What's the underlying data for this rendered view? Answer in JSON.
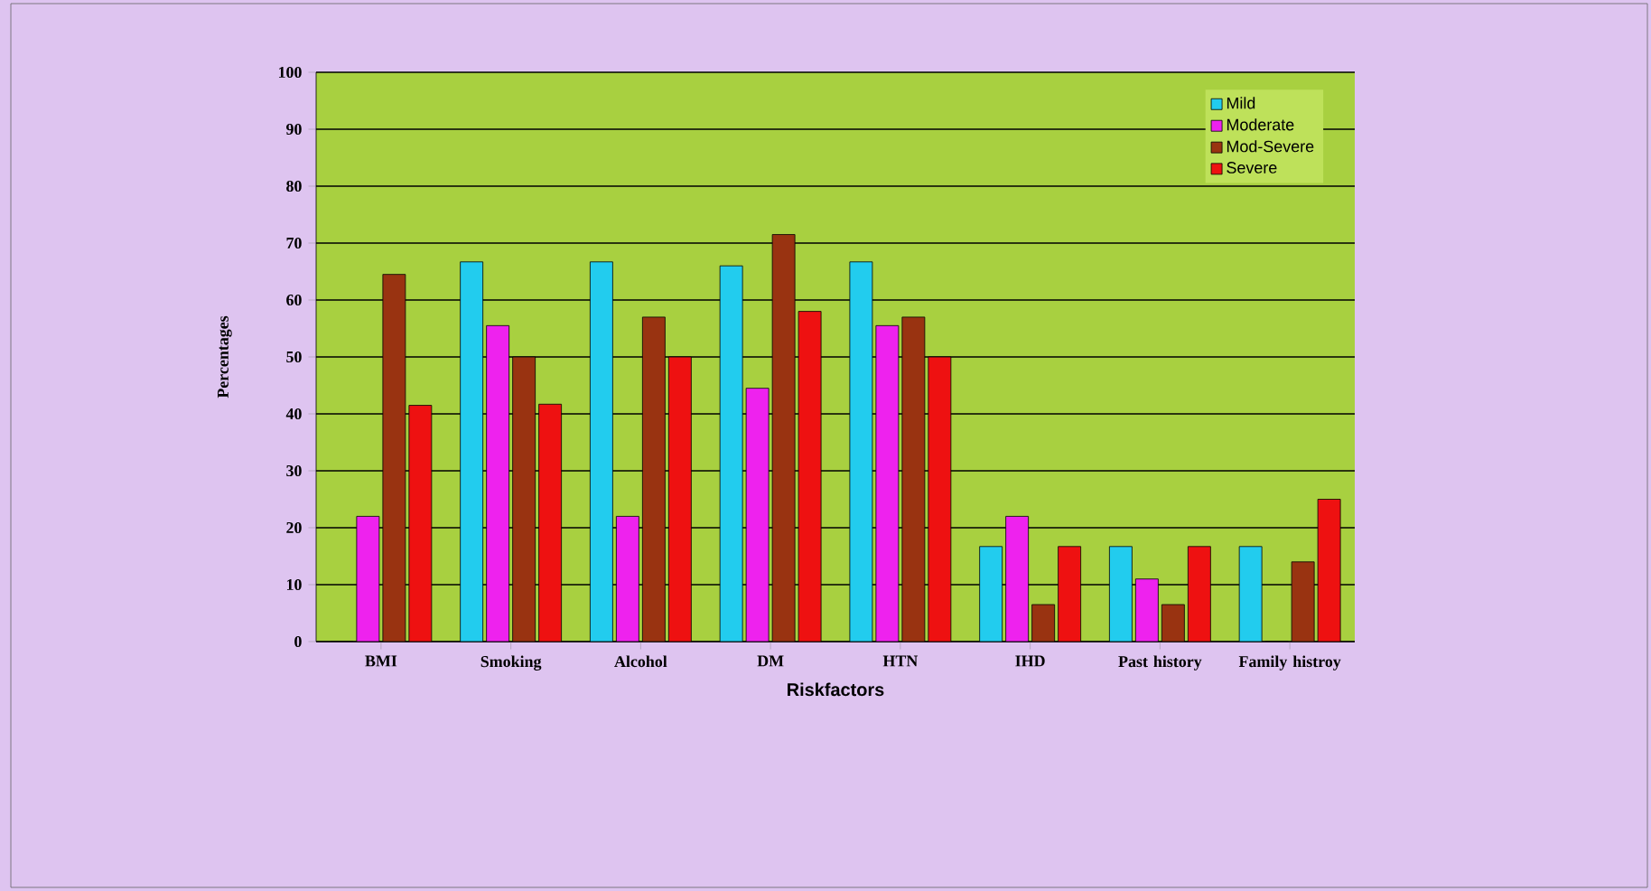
{
  "chart_data": {
    "type": "bar",
    "xlabel": "Riskfactors",
    "ylabel": "Percentages",
    "categories": [
      "BMI",
      "Smoking",
      "Alcohol",
      "DM",
      "HTN",
      "IHD",
      "Past history",
      "Family histroy"
    ],
    "series": [
      {
        "name": "Mild",
        "color": "#22ccee",
        "values": [
          0,
          66.7,
          66.7,
          66,
          66.7,
          16.7,
          16.7,
          16.7
        ]
      },
      {
        "name": "Moderate",
        "color": "#ee22ee",
        "values": [
          22,
          55.5,
          22,
          44.5,
          55.5,
          22,
          11,
          0
        ]
      },
      {
        "name": "Mod-Severe",
        "color": "#993311",
        "values": [
          64.5,
          50,
          57,
          71.5,
          57,
          6.5,
          6.5,
          14
        ]
      },
      {
        "name": "Severe",
        "color": "#ee1111",
        "values": [
          41.5,
          41.7,
          50,
          58,
          50,
          16.7,
          16.7,
          25
        ]
      }
    ],
    "ylim": [
      0,
      100
    ],
    "yticks": [
      0,
      10,
      20,
      30,
      40,
      50,
      60,
      70,
      80,
      90,
      100
    ],
    "grid": "y",
    "legend": "top right"
  }
}
